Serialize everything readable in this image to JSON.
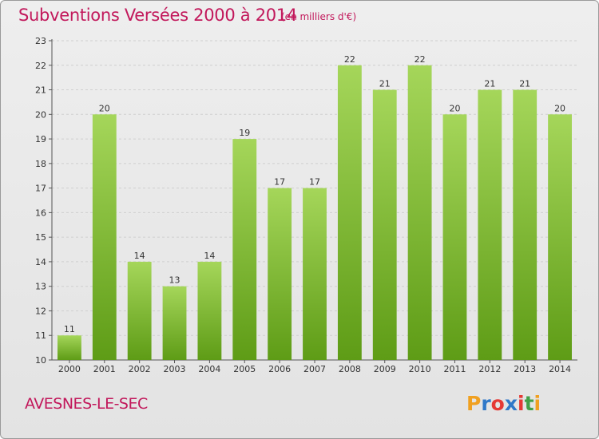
{
  "header": {
    "title": "Subventions Versées 2000 à 2014",
    "subtitle": "(en milliers d'€)"
  },
  "footer": {
    "commune": "AVESNES-LE-SEC",
    "logo_text": "Proxiti",
    "logo_colors": [
      "#f0a020",
      "#2f78c8",
      "#e53935",
      "#2f78c8",
      "#e53935",
      "#43a047",
      "#f0a020"
    ]
  },
  "colors": {
    "accent": "#c2185b",
    "bar_top": "#a5d65a",
    "bar_bottom": "#5e9c16"
  },
  "chart_data": {
    "type": "bar",
    "title": "Subventions Versées 2000 à 2014",
    "subtitle": "(en milliers d'€)",
    "xlabel": "",
    "ylabel": "",
    "categories": [
      "2000",
      "2001",
      "2002",
      "2003",
      "2004",
      "2005",
      "2006",
      "2007",
      "2008",
      "2009",
      "2010",
      "2011",
      "2012",
      "2013",
      "2014"
    ],
    "values": [
      11,
      20,
      14,
      13,
      14,
      19,
      17,
      17,
      22,
      21,
      22,
      20,
      21,
      21,
      20
    ],
    "ylim": [
      10,
      23
    ],
    "yticks": [
      10,
      11,
      12,
      13,
      14,
      15,
      16,
      17,
      18,
      19,
      20,
      21,
      22,
      23
    ],
    "grid": true,
    "legend": "none"
  }
}
